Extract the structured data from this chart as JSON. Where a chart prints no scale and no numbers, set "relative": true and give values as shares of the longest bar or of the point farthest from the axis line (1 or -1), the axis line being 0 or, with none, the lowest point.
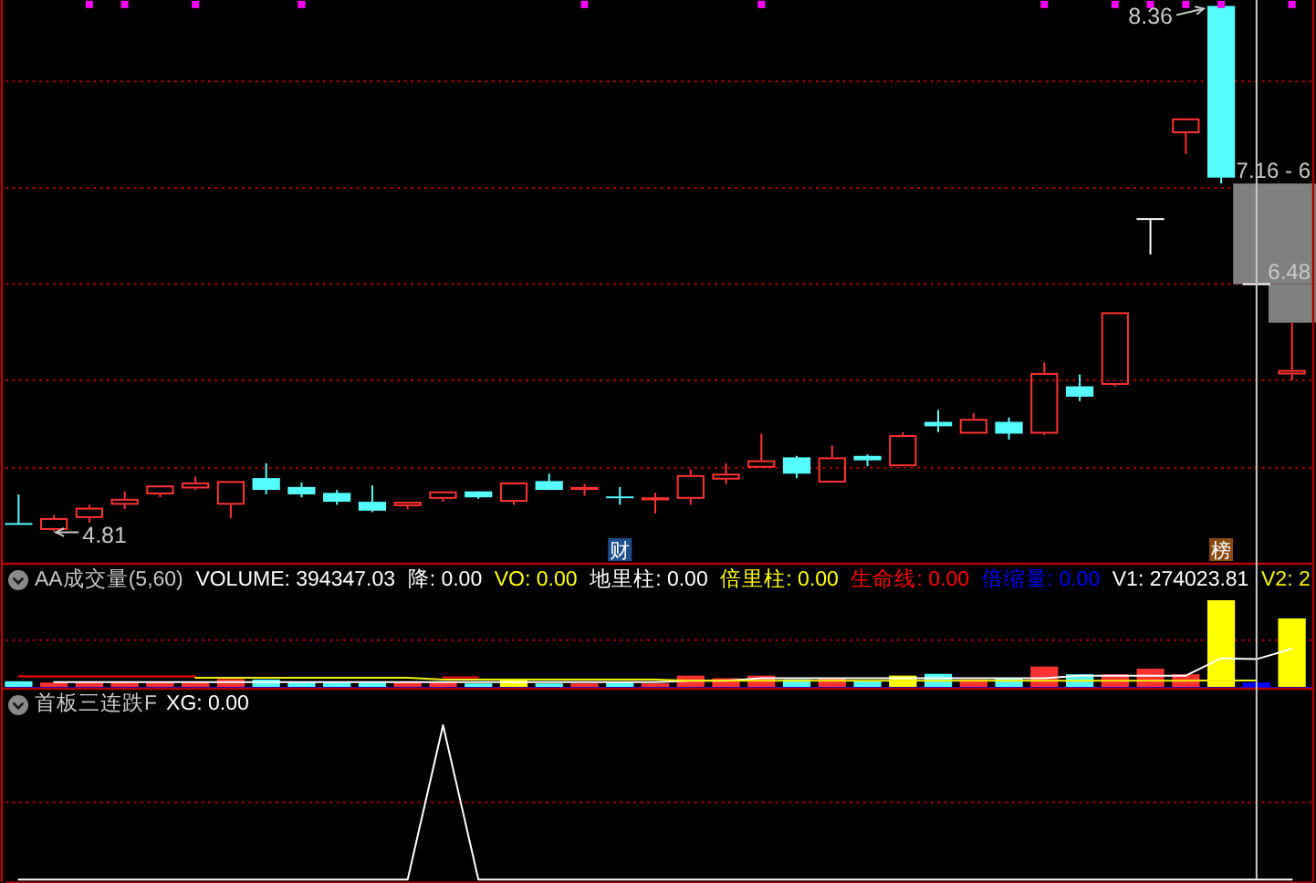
{
  "chart_data": [
    {
      "type": "candlestick",
      "categories": [
        null,
        null,
        null,
        null,
        null,
        null,
        null,
        null,
        null,
        null,
        null,
        null,
        null,
        null,
        null,
        null,
        null,
        "财",
        null,
        null,
        null,
        null,
        null,
        null,
        null,
        null,
        null,
        null,
        null,
        null,
        null,
        null,
        null,
        null,
        "榜",
        null,
        null
      ],
      "ohlc": [
        [
          4.86,
          5.06,
          4.86,
          4.86
        ],
        [
          4.82,
          4.92,
          4.81,
          4.9
        ],
        [
          4.9,
          4.99,
          4.87,
          4.97
        ],
        [
          4.99,
          5.08,
          4.96,
          5.03
        ],
        [
          5.06,
          5.12,
          5.04,
          5.12
        ],
        [
          5.1,
          5.18,
          5.09,
          5.14
        ],
        [
          4.99,
          5.15,
          4.9,
          5.15
        ],
        [
          5.17,
          5.27,
          5.06,
          5.09
        ],
        [
          5.11,
          5.14,
          5.04,
          5.06
        ],
        [
          5.07,
          5.09,
          4.99,
          5.01
        ],
        [
          5.01,
          5.12,
          4.94,
          4.95
        ],
        [
          4.98,
          5.01,
          4.96,
          5.01
        ],
        [
          5.03,
          5.08,
          5.01,
          5.08
        ],
        [
          5.08,
          5.08,
          5.03,
          5.04
        ],
        [
          5.01,
          5.14,
          4.99,
          5.14
        ],
        [
          5.15,
          5.2,
          5.09,
          5.09
        ],
        [
          5.09,
          5.13,
          5.05,
          5.11
        ],
        [
          5.04,
          5.11,
          4.99,
          5.04
        ],
        [
          5.02,
          5.07,
          4.93,
          5.04
        ],
        [
          5.03,
          5.23,
          4.99,
          5.19
        ],
        [
          5.16,
          5.27,
          5.13,
          5.2
        ],
        [
          5.24,
          5.47,
          5.24,
          5.29
        ],
        [
          5.31,
          5.32,
          5.17,
          5.2
        ],
        [
          5.14,
          5.39,
          5.14,
          5.31
        ],
        [
          5.32,
          5.33,
          5.25,
          5.29
        ],
        [
          5.25,
          5.48,
          5.25,
          5.46
        ],
        [
          5.55,
          5.63,
          5.48,
          5.52
        ],
        [
          5.47,
          5.61,
          5.47,
          5.57
        ],
        [
          5.55,
          5.58,
          5.43,
          5.47
        ],
        [
          5.47,
          5.95,
          5.46,
          5.88
        ],
        [
          5.79,
          5.87,
          5.69,
          5.72
        ],
        [
          5.8,
          6.29,
          5.79,
          6.29
        ],
        [
          6.92,
          6.92,
          6.68,
          6.92
        ],
        [
          7.5,
          7.6,
          7.36,
          7.6
        ],
        [
          8.36,
          8.36,
          7.16,
          7.2
        ],
        [
          6.48,
          6.48,
          6.48,
          6.48
        ],
        [
          5.87,
          6.22,
          5.83,
          5.9
        ]
      ],
      "colors": [
        "#54fcfc",
        "#ff3232",
        "#ff3232",
        "#ff3232",
        "#ff3232",
        "#ff3232",
        "#ff3232",
        "#54fcfc",
        "#54fcfc",
        "#54fcfc",
        "#54fcfc",
        "#ff3232",
        "#ff3232",
        "#54fcfc",
        "#ff3232",
        "#54fcfc",
        "#ff3232",
        "#54fcfc",
        "#ff3232",
        "#ff3232",
        "#ff3232",
        "#ff3232",
        "#54fcfc",
        "#ff3232",
        "#54fcfc",
        "#ff3232",
        "#54fcfc",
        "#ff3232",
        "#54fcfc",
        "#ff3232",
        "#54fcfc",
        "#ff3232",
        "#ffffff",
        "#ff3232",
        "#54fcfc",
        "#ffffff",
        "#ff3232"
      ],
      "series": [
        {
          "type": "scatter",
          "color": "#ff00ff",
          "marker": "square",
          "values": [
            null,
            null,
            8.37,
            8.37,
            null,
            8.37,
            null,
            null,
            8.37,
            null,
            null,
            null,
            null,
            null,
            null,
            null,
            8.37,
            null,
            null,
            null,
            null,
            8.37,
            null,
            null,
            null,
            null,
            null,
            null,
            null,
            8.37,
            null,
            8.37,
            8.37,
            8.37,
            8.37,
            null,
            8.37
          ]
        }
      ],
      "ylim": [
        4.6,
        8.4
      ],
      "tick_labels": "x",
      "ref_lines": [
        {
          "axis": "y",
          "value": 7.85,
          "color": "#a80000",
          "line_style": "dotted"
        },
        {
          "axis": "y",
          "value": 7.13,
          "color": "#a80000",
          "line_style": "dotted"
        },
        {
          "axis": "y",
          "value": 6.48,
          "color": "#a80000",
          "line_style": "dotted"
        },
        {
          "axis": "y",
          "value": 5.83,
          "color": "#a80000",
          "line_style": "dotted"
        },
        {
          "axis": "y",
          "value": 5.24,
          "color": "#a80000",
          "line_style": "dotted"
        }
      ],
      "annotations": [
        {
          "text": "8.36",
          "y": 8.36
        },
        "4.81",
        {
          "text": "6.48",
          "y": 6.48
        }
      ],
      "bands": [
        {
          "axis": "y",
          "from": 6.48,
          "to": 7.16,
          "label": "7.16 - 6",
          "color": "#808080"
        }
      ]
    },
    {
      "type": "bar",
      "relative": true,
      "title": "AA成交量(5,60)",
      "categories": [
        null,
        null,
        null,
        null,
        null,
        null,
        null,
        null,
        null,
        null,
        null,
        null,
        null,
        null,
        null,
        null,
        null,
        null,
        null,
        null,
        null,
        null,
        null,
        null,
        null,
        null,
        null,
        null,
        null,
        null,
        null,
        null,
        null,
        null,
        null,
        null,
        null
      ],
      "tick_labels": false,
      "ref_lines": [
        {
          "axis": "y",
          "value": 0.54,
          "color": "#a80000",
          "line_style": "dotted"
        }
      ],
      "series": [
        {
          "type": "bar",
          "colors": [
            "#54fcfc",
            "#ff3232",
            "#ff3232",
            "#ff3232",
            "#ff3232",
            "#ff3232",
            "#ff3232",
            "#54fcfc",
            "#54fcfc",
            "#54fcfc",
            "#54fcfc",
            "#ff3232",
            "#ff3232",
            "#54fcfc",
            "#ffff00",
            "#54fcfc",
            "#ff3232",
            "#54fcfc",
            "#ff3232",
            "#ff3232",
            "#ff3232",
            "#ff3232",
            "#54fcfc",
            "#ff3232",
            "#54fcfc",
            "#ffff00",
            "#54fcfc",
            "#ff3232",
            "#54fcfc",
            "#ff3232",
            "#54fcfc",
            "#ff3232",
            "#ff3232",
            "#ff3232",
            "#ffff00",
            "#0000ff",
            "#ffff00"
          ],
          "values": [
            0.065,
            0.05,
            0.05,
            0.05,
            0.05,
            0.05,
            0.09,
            0.085,
            0.05,
            0.05,
            0.05,
            0.05,
            0.05,
            0.04,
            0.085,
            0.04,
            0.04,
            0.05,
            0.04,
            0.13,
            0.1,
            0.13,
            0.085,
            0.1,
            0.065,
            0.13,
            0.15,
            0.085,
            0.1,
            0.235,
            0.145,
            0.145,
            0.21,
            0.145,
            1,
            0.05,
            0.79
          ]
        },
        {
          "name": "VOLUME: 394347.03",
          "type": "line",
          "color": "#ffffff",
          "values": [
            null,
            null,
            null,
            null,
            null,
            null,
            null,
            null,
            null,
            null,
            null,
            null,
            null,
            null,
            null,
            null,
            null,
            null,
            null,
            null,
            null,
            null,
            null,
            null,
            null,
            null,
            null,
            null,
            null,
            null,
            null,
            null,
            null,
            null,
            null,
            null,
            null
          ]
        },
        {
          "name": "降: 0.00",
          "type": "line",
          "color": "#ffffff",
          "values": [
            null,
            null,
            null,
            null,
            null,
            null,
            null,
            null,
            null,
            null,
            null,
            null,
            null,
            null,
            null,
            null,
            null,
            null,
            null,
            null,
            null,
            null,
            null,
            null,
            null,
            null,
            null,
            null,
            null,
            null,
            null,
            null,
            null,
            null,
            null,
            null,
            null
          ]
        },
        {
          "name": "VO: 0.00",
          "type": "line",
          "color": "#ffff00",
          "values": [
            null,
            null,
            null,
            null,
            null,
            null,
            null,
            null,
            null,
            null,
            null,
            null,
            null,
            null,
            null,
            null,
            null,
            null,
            null,
            null,
            null,
            null,
            null,
            null,
            null,
            null,
            null,
            null,
            null,
            null,
            null,
            null,
            null,
            null,
            null,
            null,
            null
          ]
        },
        {
          "name": "地里柱: 0.00",
          "type": "bar",
          "color": "#ffffff",
          "values": [
            null,
            null,
            null,
            null,
            null,
            null,
            null,
            null,
            null,
            null,
            null,
            null,
            null,
            null,
            null,
            null,
            null,
            null,
            null,
            null,
            null,
            null,
            null,
            null,
            null,
            null,
            null,
            null,
            null,
            null,
            null,
            null,
            null,
            null,
            null,
            null,
            null
          ]
        },
        {
          "name": "倍里柱: 0.00",
          "type": "bar",
          "color": "#ffff00",
          "values": [
            null,
            null,
            null,
            null,
            null,
            null,
            null,
            null,
            null,
            null,
            null,
            null,
            null,
            null,
            null,
            null,
            null,
            null,
            null,
            null,
            null,
            null,
            null,
            null,
            null,
            null,
            null,
            null,
            null,
            null,
            null,
            null,
            null,
            null,
            null,
            null,
            null
          ]
        },
        {
          "name": "生命线: 0.00",
          "type": "line",
          "color": "#ff0000",
          "values": [
            0.12,
            0.12,
            0.12,
            0.12,
            0.12,
            0.12,
            null,
            null,
            null,
            null,
            null,
            null,
            0.11,
            0.11,
            null,
            null,
            null,
            null,
            null,
            null,
            null,
            null,
            null,
            null,
            null,
            null,
            null,
            null,
            null,
            null,
            null,
            null,
            null,
            null,
            null,
            null,
            null
          ]
        },
        {
          "name": "倍缩量: 0.00",
          "type": "line",
          "color": "#0000ff",
          "values": [
            null,
            null,
            null,
            null,
            null,
            null,
            null,
            null,
            null,
            null,
            null,
            null,
            null,
            null,
            null,
            null,
            null,
            null,
            null,
            null,
            null,
            null,
            null,
            null,
            null,
            null,
            null,
            null,
            null,
            null,
            null,
            null,
            null,
            null,
            null,
            null,
            null
          ]
        },
        {
          "name": "V1: 274023.81",
          "type": "line",
          "color": "#ffffff",
          "values": [
            null,
            0.055,
            0.055,
            0.055,
            0.055,
            0.055,
            0.055,
            0.055,
            0.055,
            0.055,
            0.055,
            0.055,
            0.055,
            0.055,
            0.055,
            0.055,
            0.055,
            0.055,
            0.055,
            0.07,
            0.07,
            0.1,
            0.1,
            0.1,
            0.1,
            0.1,
            0.1,
            0.1,
            0.1,
            0.1,
            0.13,
            0.13,
            0.13,
            0.13,
            0.33,
            0.32,
            0.44
          ]
        },
        {
          "name": "V2: 2",
          "type": "line",
          "color": "#f2f200",
          "values": [
            null,
            null,
            null,
            null,
            null,
            0.105,
            0.105,
            0.105,
            0.105,
            0.105,
            0.105,
            0.105,
            0.085,
            0.085,
            0.085,
            0.085,
            0.085,
            0.085,
            0.085,
            0.07,
            0.07,
            0.07,
            0.07,
            0.07,
            0.07,
            0.07,
            0.07,
            0.07,
            0.07,
            0.07,
            0.07,
            0.07,
            0.07,
            0.07,
            0.075,
            0.075,
            null
          ]
        }
      ]
    },
    {
      "type": "line",
      "relative": true,
      "title": "首板三连跌F",
      "categories": [
        null,
        null,
        null,
        null,
        null,
        null,
        null,
        null,
        null,
        null,
        null,
        null,
        null,
        null,
        null,
        null,
        null,
        null,
        null,
        null,
        null,
        null,
        null,
        null,
        null,
        null,
        null,
        null,
        null,
        null,
        null,
        null,
        null,
        null,
        null,
        null,
        null
      ],
      "tick_labels": false,
      "ref_lines": [
        {
          "axis": "y",
          "value": 0.5,
          "color": "#a80000",
          "line_style": "dotted"
        }
      ],
      "series": [
        {
          "name": "XG: 0.00",
          "color": "#ffffff",
          "values": [
            0,
            0,
            0,
            0,
            0,
            0,
            0,
            0,
            0,
            0,
            0,
            0,
            1,
            0,
            0,
            0,
            0,
            0,
            0,
            0,
            0,
            0,
            0,
            0,
            0,
            0,
            0,
            0,
            0,
            0,
            0,
            0,
            0,
            0,
            0,
            0,
            0
          ]
        }
      ]
    }
  ]
}
